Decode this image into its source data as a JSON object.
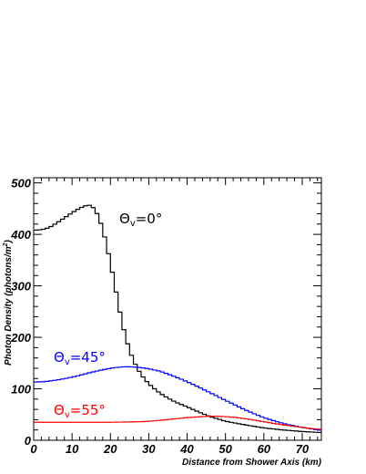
{
  "chart_data": {
    "type": "line",
    "style": "step",
    "title": "",
    "xlabel": "Distance from Shower Axis (km)",
    "ylabel_main": "Photon Density (photons/m",
    "ylabel_sup": "2",
    "ylabel_tail": ")",
    "xlim": [
      0,
      75
    ],
    "ylim": [
      0,
      510
    ],
    "x_ticks": [
      0,
      10,
      20,
      30,
      40,
      50,
      60,
      70
    ],
    "y_ticks": [
      0,
      100,
      200,
      300,
      400,
      500
    ],
    "grid": false,
    "legend": "none (inline labels)",
    "bin_width_km": 1,
    "series": [
      {
        "name": "Θv=0°",
        "color": "#000000",
        "label_pos": [
          31,
          438
        ],
        "points": [
          [
            0,
            408
          ],
          [
            2,
            409
          ],
          [
            4,
            413
          ],
          [
            6,
            422
          ],
          [
            8,
            432
          ],
          [
            10,
            442
          ],
          [
            12,
            451
          ],
          [
            14,
            457
          ],
          [
            15,
            456
          ],
          [
            16,
            448
          ],
          [
            17,
            433
          ],
          [
            18,
            410
          ],
          [
            19,
            380
          ],
          [
            20,
            345
          ],
          [
            21,
            308
          ],
          [
            22,
            268
          ],
          [
            23,
            230
          ],
          [
            24,
            200
          ],
          [
            25,
            175
          ],
          [
            26,
            155
          ],
          [
            27,
            140
          ],
          [
            28,
            128
          ],
          [
            29,
            118
          ],
          [
            30,
            110
          ],
          [
            31,
            103
          ],
          [
            32,
            97
          ],
          [
            33,
            91
          ],
          [
            35,
            82
          ],
          [
            37,
            74
          ],
          [
            40,
            65
          ],
          [
            43,
            55
          ],
          [
            46,
            46
          ],
          [
            50,
            37
          ],
          [
            55,
            30
          ],
          [
            60,
            24
          ],
          [
            65,
            20
          ],
          [
            70,
            17
          ],
          [
            75,
            15
          ]
        ]
      },
      {
        "name": "Θv=45°",
        "color": "#0000ff",
        "label_pos": [
          7,
          158
        ],
        "points": [
          [
            0,
            113
          ],
          [
            3,
            114
          ],
          [
            6,
            117
          ],
          [
            9,
            121
          ],
          [
            12,
            126
          ],
          [
            15,
            132
          ],
          [
            18,
            137
          ],
          [
            21,
            141
          ],
          [
            24,
            143
          ],
          [
            27,
            142
          ],
          [
            30,
            139
          ],
          [
            33,
            134
          ],
          [
            36,
            126
          ],
          [
            39,
            117
          ],
          [
            42,
            107
          ],
          [
            45,
            96
          ],
          [
            48,
            85
          ],
          [
            51,
            74
          ],
          [
            54,
            63
          ],
          [
            57,
            53
          ],
          [
            60,
            44
          ],
          [
            63,
            37
          ],
          [
            66,
            31
          ],
          [
            70,
            25
          ],
          [
            75,
            19
          ]
        ]
      },
      {
        "name": "Θv=55°",
        "color": "#ff0000",
        "label_pos": [
          7,
          60
        ],
        "points": [
          [
            0,
            35
          ],
          [
            10,
            35
          ],
          [
            20,
            35
          ],
          [
            28,
            36
          ],
          [
            32,
            38
          ],
          [
            36,
            41
          ],
          [
            40,
            44
          ],
          [
            44,
            46
          ],
          [
            47,
            47
          ],
          [
            50,
            46
          ],
          [
            53,
            44
          ],
          [
            56,
            41
          ],
          [
            60,
            36
          ],
          [
            64,
            31
          ],
          [
            68,
            27
          ],
          [
            72,
            23
          ],
          [
            75,
            21
          ]
        ]
      }
    ]
  },
  "annotations": {
    "label_0": "Θ",
    "label_0_sub": "v",
    "label_0_val": "=0°",
    "label_45": "Θ",
    "label_45_sub": "v",
    "label_45_val": "=45°",
    "label_55": "Θ",
    "label_55_sub": "v",
    "label_55_val": "=55°"
  }
}
